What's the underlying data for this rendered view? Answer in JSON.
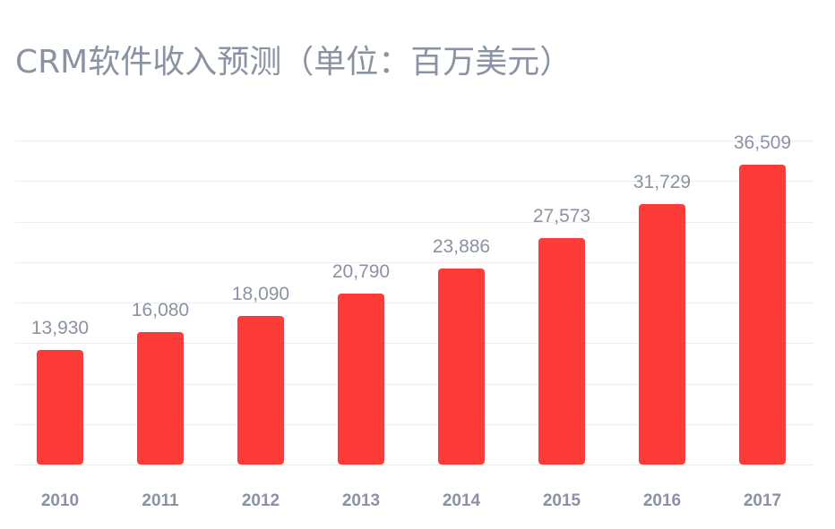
{
  "title": "CRM软件收入预测（单位：百万美元）",
  "colors": {
    "bar": "#fd3c3a",
    "text": "#8a93a3",
    "grid": "#eceef1"
  },
  "chart_data": {
    "type": "bar",
    "title": "CRM软件收入预测（单位：百万美元）",
    "xlabel": "",
    "ylabel": "",
    "categories": [
      "2010",
      "2011",
      "2012",
      "2013",
      "2014",
      "2015",
      "2016",
      "2017"
    ],
    "values": [
      13930,
      16080,
      18090,
      20790,
      23886,
      27573,
      31729,
      36509
    ],
    "value_labels": [
      "13,930",
      "16,080",
      "18,090",
      "20,790",
      "23,886",
      "27,573",
      "31,729",
      "36,509"
    ],
    "ylim": [
      0,
      40000
    ],
    "grid": true,
    "legend": null
  }
}
